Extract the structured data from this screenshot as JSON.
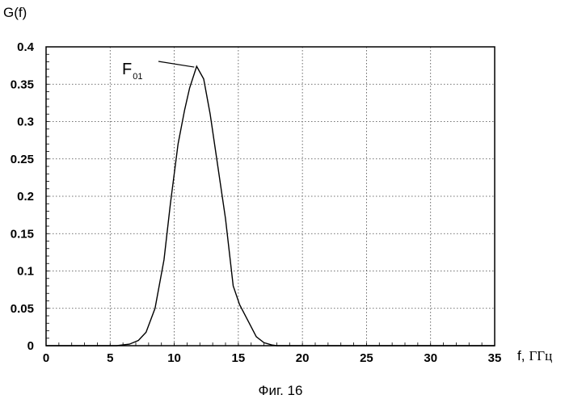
{
  "chart_data": {
    "type": "line",
    "ylabel": "G(f)",
    "xlabel_var": "f,",
    "xlabel_unit": "ГГц",
    "caption": "Фиг. 16",
    "annotation": {
      "main": "F",
      "sub": "01",
      "x": 11.75,
      "y": 0.374
    },
    "xlim": [
      0,
      35
    ],
    "ylim": [
      0,
      0.4
    ],
    "xticks": [
      0,
      5,
      10,
      15,
      20,
      25,
      30,
      35
    ],
    "yticks": [
      0,
      0.05,
      0.1,
      0.15,
      0.2,
      0.25,
      0.3,
      0.35,
      0.4
    ],
    "xtick_labels": [
      "0",
      "5",
      "10",
      "15",
      "20",
      "25",
      "30",
      "35"
    ],
    "ytick_labels": [
      "0",
      "0.05",
      "0.1",
      "0.15",
      "0.2",
      "0.25",
      "0.3",
      "0.35",
      "0.4"
    ],
    "grid": true,
    "series": [
      {
        "x": [
          0,
          5.5,
          6.5,
          7.2,
          7.8,
          8.5,
          9.2,
          9.7,
          10.3,
          10.8,
          11.2,
          11.75,
          12.3,
          12.8,
          13.4,
          14.0,
          14.6,
          15.1,
          15.8,
          16.4,
          17.0,
          17.6,
          18.0,
          35
        ],
        "y": [
          0,
          0,
          0.002,
          0.007,
          0.018,
          0.05,
          0.115,
          0.19,
          0.27,
          0.315,
          0.345,
          0.374,
          0.357,
          0.31,
          0.24,
          0.17,
          0.08,
          0.055,
          0.032,
          0.012,
          0.004,
          0.001,
          0,
          0
        ]
      }
    ]
  }
}
